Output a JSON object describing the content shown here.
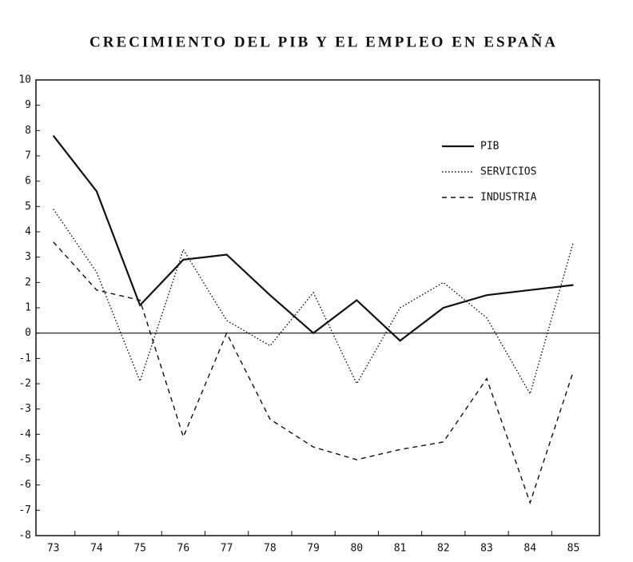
{
  "chart_data": {
    "type": "line",
    "title": "CRECIMIENTO DEL PIB Y EL EMPLEO EN ESPAÑA",
    "categories": [
      "73",
      "74",
      "75",
      "76",
      "77",
      "78",
      "79",
      "80",
      "81",
      "82",
      "83",
      "84",
      "85"
    ],
    "series": [
      {
        "name": "PIB",
        "color": "#111111",
        "line_style": "solid",
        "values": [
          7.8,
          5.6,
          1.1,
          2.9,
          3.1,
          1.5,
          0.0,
          1.3,
          -0.3,
          1.0,
          1.5,
          1.7,
          1.9
        ]
      },
      {
        "name": "SERVICIOS",
        "color": "#111111",
        "line_style": "dotted",
        "values": [
          4.9,
          2.4,
          -1.9,
          3.3,
          0.5,
          -0.5,
          1.6,
          -2.0,
          1.0,
          2.0,
          0.6,
          -2.4,
          3.6
        ]
      },
      {
        "name": "INDUSTRIA",
        "color": "#111111",
        "line_style": "dashed",
        "values": [
          3.6,
          1.7,
          1.3,
          -4.1,
          0.0,
          -3.4,
          -4.5,
          -5.0,
          -4.6,
          -4.3,
          -1.8,
          -6.7,
          -1.5
        ]
      }
    ],
    "ylim": [
      -8,
      10
    ],
    "yticks": [
      -8,
      -7,
      -6,
      -5,
      -4,
      -3,
      -2,
      -1,
      0,
      1,
      2,
      3,
      4,
      5,
      6,
      7,
      8,
      9,
      10
    ],
    "zero_line": true,
    "legend": "upper right"
  }
}
